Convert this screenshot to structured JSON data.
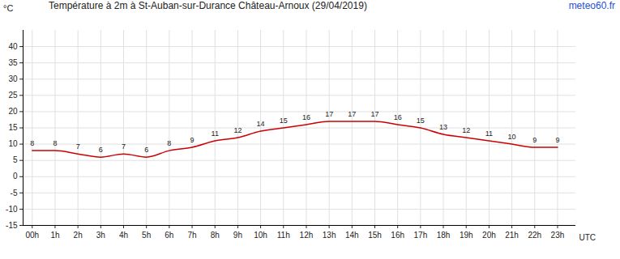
{
  "chart_data": {
    "type": "line",
    "title": "Température à 2m à St-Auban-sur-Durance Château-Arnoux (29/04/2019)",
    "source": "meteo60.fr",
    "y_label": "°C",
    "x_label": "UTC",
    "x": [
      0,
      1,
      2,
      3,
      4,
      5,
      6,
      7,
      8,
      9,
      10,
      11,
      12,
      13,
      14,
      15,
      16,
      17,
      18,
      19,
      20,
      21,
      22,
      23
    ],
    "values": [
      8,
      8,
      7,
      6,
      7,
      6,
      8,
      9,
      11,
      12,
      14,
      15,
      16,
      17,
      17,
      17,
      16,
      15,
      13,
      12,
      11,
      10,
      9,
      9
    ],
    "color": "#cc0000",
    "data_labels": true,
    "grid": true,
    "xlim": [
      -0.4,
      23.8
    ],
    "ylim": [
      -15,
      45
    ],
    "xticks": [
      {
        "value": 0,
        "label": "00h"
      },
      {
        "value": 1,
        "label": "1h"
      },
      {
        "value": 2,
        "label": "2h"
      },
      {
        "value": 3,
        "label": "3h"
      },
      {
        "value": 4,
        "label": "4h"
      },
      {
        "value": 5,
        "label": "5h"
      },
      {
        "value": 6,
        "label": "6h"
      },
      {
        "value": 7,
        "label": "7h"
      },
      {
        "value": 8,
        "label": "8h"
      },
      {
        "value": 9,
        "label": "9h"
      },
      {
        "value": 10,
        "label": "10h"
      },
      {
        "value": 11,
        "label": "11h"
      },
      {
        "value": 12,
        "label": "12h"
      },
      {
        "value": 13,
        "label": "13h"
      },
      {
        "value": 14,
        "label": "14h"
      },
      {
        "value": 15,
        "label": "15h"
      },
      {
        "value": 16,
        "label": "16h"
      },
      {
        "value": 17,
        "label": "17h"
      },
      {
        "value": 18,
        "label": "18h"
      },
      {
        "value": 19,
        "label": "19h"
      },
      {
        "value": 20,
        "label": "20h"
      },
      {
        "value": 21,
        "label": "21h"
      },
      {
        "value": 22,
        "label": "22h"
      },
      {
        "value": 23,
        "label": "23h"
      }
    ],
    "yticks": [
      -15,
      -10,
      -5,
      0,
      5,
      10,
      15,
      20,
      25,
      30,
      35,
      40
    ]
  }
}
